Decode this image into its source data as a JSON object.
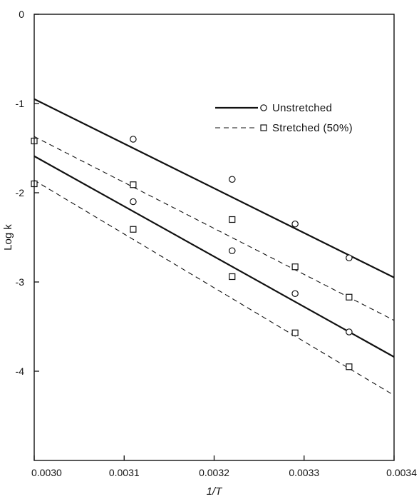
{
  "chart_data": {
    "type": "scatter",
    "xlabel": "1/T",
    "ylabel": "Log k",
    "xlim": [
      0.003,
      0.0034
    ],
    "ylim": [
      -5,
      0
    ],
    "x_ticks": [
      {
        "value": 0.003,
        "label": "0.0030"
      },
      {
        "value": 0.0031,
        "label": "0.0031"
      },
      {
        "value": 0.0032,
        "label": "0.0032"
      },
      {
        "value": 0.0033,
        "label": "0.0033"
      },
      {
        "value": 0.0034,
        "label": "0.0034"
      }
    ],
    "y_ticks": [
      {
        "value": 0,
        "label": "0"
      },
      {
        "value": -1,
        "label": "-1"
      },
      {
        "value": -2,
        "label": "-2"
      },
      {
        "value": -3,
        "label": "-3"
      },
      {
        "value": -4,
        "label": "-4"
      }
    ],
    "grid": false,
    "legend": {
      "position": "top-right",
      "entries": [
        {
          "label": "Unstretched",
          "line_style": "solid",
          "marker": "circle"
        },
        {
          "label": "Stretched (50%)",
          "line_style": "dashed",
          "marker": "square"
        }
      ]
    },
    "series": [
      {
        "group": "Unstretched",
        "marker": "circle",
        "line_style": "solid",
        "points": [
          {
            "x": 0.00311,
            "y": -1.4
          },
          {
            "x": 0.00322,
            "y": -1.85
          },
          {
            "x": 0.00329,
            "y": -2.35
          },
          {
            "x": 0.00335,
            "y": -2.73
          }
        ],
        "fit_line": {
          "x": [
            0.003,
            0.0034
          ],
          "y": [
            -0.95,
            -2.95
          ]
        }
      },
      {
        "group": "Stretched (50%)",
        "marker": "square",
        "line_style": "dashed",
        "points": [
          {
            "x": 0.003,
            "y": -1.42
          },
          {
            "x": 0.00311,
            "y": -1.91
          },
          {
            "x": 0.00322,
            "y": -2.3
          },
          {
            "x": 0.00329,
            "y": -2.83
          },
          {
            "x": 0.00335,
            "y": -3.17
          }
        ],
        "fit_line": {
          "x": [
            0.003,
            0.0034
          ],
          "y": [
            -1.37,
            -3.43
          ]
        }
      },
      {
        "group": "Unstretched",
        "marker": "circle",
        "line_style": "solid",
        "points": [
          {
            "x": 0.00311,
            "y": -2.1
          },
          {
            "x": 0.00322,
            "y": -2.65
          },
          {
            "x": 0.00329,
            "y": -3.13
          },
          {
            "x": 0.00335,
            "y": -3.56
          }
        ],
        "fit_line": {
          "x": [
            0.003,
            0.0034
          ],
          "y": [
            -1.59,
            -3.84
          ]
        }
      },
      {
        "group": "Stretched (50%)",
        "marker": "square",
        "line_style": "dashed",
        "points": [
          {
            "x": 0.003,
            "y": -1.9
          },
          {
            "x": 0.00311,
            "y": -2.41
          },
          {
            "x": 0.00322,
            "y": -2.94
          },
          {
            "x": 0.00329,
            "y": -3.57
          },
          {
            "x": 0.00335,
            "y": -3.95
          }
        ],
        "fit_line": {
          "x": [
            0.003,
            0.0034
          ],
          "y": [
            -1.86,
            -4.27
          ]
        }
      }
    ]
  }
}
